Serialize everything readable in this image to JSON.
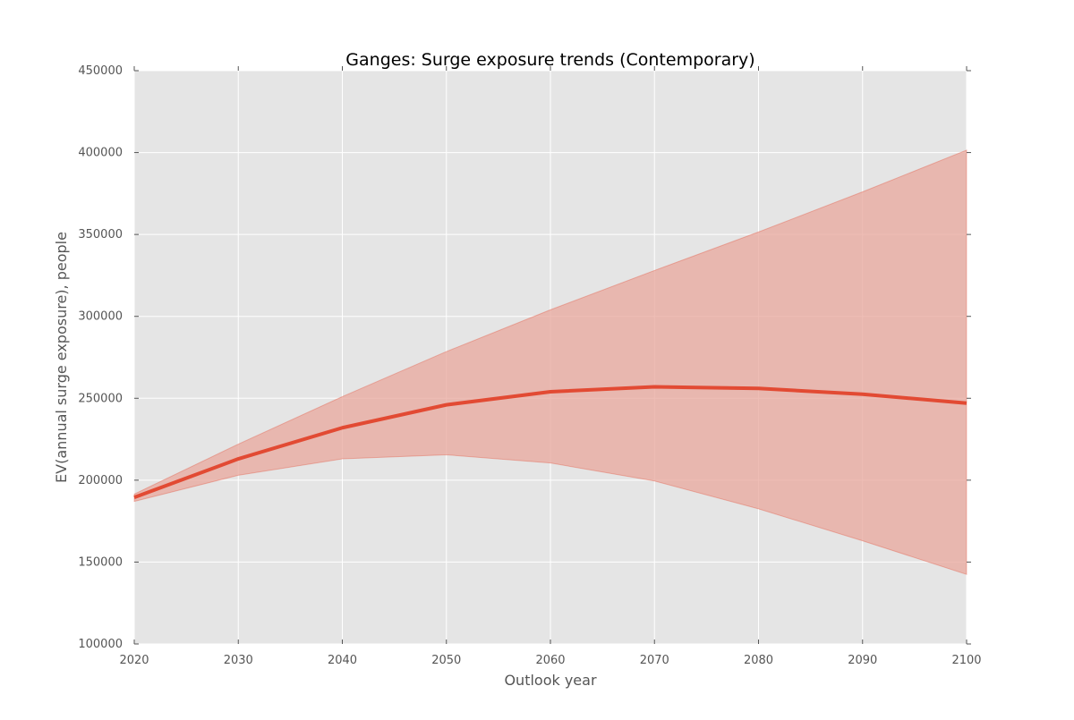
{
  "chart_data": {
    "type": "line",
    "title": "Ganges: Surge exposure trends (Contemporary)",
    "xlabel": "Outlook year",
    "ylabel": "EV(annual surge exposure), people",
    "xlim": [
      2020,
      2100
    ],
    "ylim": [
      100000,
      450000
    ],
    "x_ticks": [
      2020,
      2030,
      2040,
      2050,
      2060,
      2070,
      2080,
      2090,
      2100
    ],
    "y_ticks": [
      100000,
      150000,
      200000,
      250000,
      300000,
      350000,
      400000,
      450000
    ],
    "grid": true,
    "x": [
      2020,
      2030,
      2040,
      2050,
      2060,
      2070,
      2080,
      2090,
      2100
    ],
    "series": [
      {
        "values": [
          189500,
          213000,
          232000,
          246000,
          254000,
          257000,
          256000,
          252500,
          247000
        ],
        "color": "#e24a33"
      }
    ],
    "band": {
      "lower": [
        187000,
        203000,
        213000,
        215500,
        210500,
        199500,
        182500,
        163000,
        142500
      ],
      "upper": [
        191500,
        222000,
        251000,
        278500,
        304000,
        328000,
        351500,
        376000,
        401500
      ],
      "color": "#e24a33"
    },
    "colors": {
      "plot_background": "#e5e5e5",
      "grid": "#ffffff",
      "line": "#e24a33",
      "band_fill": "#e8a79c"
    }
  }
}
